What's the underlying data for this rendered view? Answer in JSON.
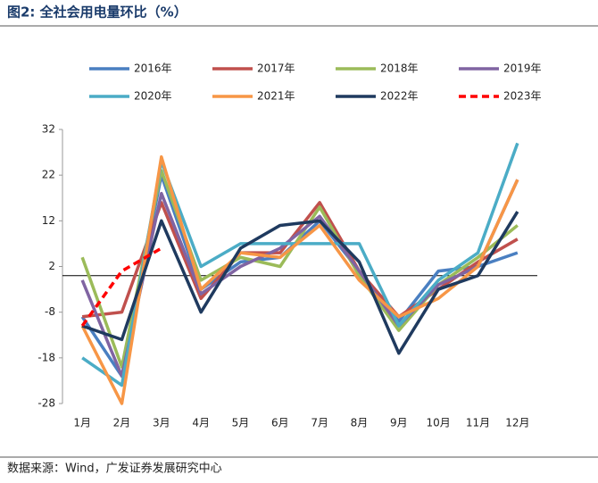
{
  "chart_data": {
    "type": "line",
    "title": "图2: 全社会用电量环比（%）",
    "source": "数据来源：Wind，广发证券发展研究中心",
    "categories": [
      "1月",
      "2月",
      "3月",
      "4月",
      "5月",
      "6月",
      "7月",
      "8月",
      "9月",
      "10月",
      "11月",
      "12月"
    ],
    "ylim": [
      -28,
      32
    ],
    "yticks": [
      -28,
      -18,
      -8,
      2,
      12,
      22,
      32
    ],
    "series": [
      {
        "name": "2016年",
        "color": "#4a7fc1",
        "values": [
          -9,
          -22,
          22,
          -3,
          3,
          4,
          12,
          1,
          -10,
          1,
          2,
          5
        ]
      },
      {
        "name": "2017年",
        "color": "#c0504d",
        "values": [
          -9,
          -8,
          16,
          -5,
          5,
          5,
          16,
          1,
          -9,
          -3,
          3,
          8
        ]
      },
      {
        "name": "2018年",
        "color": "#9bbb59",
        "values": [
          4,
          -20,
          23,
          -1,
          4,
          2,
          15,
          0,
          -12,
          -2,
          4,
          11
        ]
      },
      {
        "name": "2019年",
        "color": "#8064a2",
        "values": [
          -1,
          -22,
          18,
          -4,
          2,
          6,
          13,
          1,
          -11,
          -2,
          2,
          21
        ]
      },
      {
        "name": "2020年",
        "color": "#4bacc6",
        "values": [
          -18,
          -24,
          25,
          2,
          7,
          7,
          7,
          7,
          -11,
          -1,
          5,
          29
        ]
      },
      {
        "name": "2021年",
        "color": "#f79646",
        "values": [
          -11,
          -28,
          26,
          -3,
          5,
          4,
          11,
          -1,
          -9,
          -5,
          2,
          21
        ]
      },
      {
        "name": "2022年",
        "color": "#1f3a5f",
        "values": [
          -11,
          -14,
          12,
          -8,
          6,
          11,
          12,
          3,
          -17,
          -3,
          0,
          14
        ]
      },
      {
        "name": "2023年",
        "color": "#ff0000",
        "dashed": true,
        "values": [
          -11,
          1,
          6,
          null,
          null,
          null,
          null,
          null,
          null,
          null,
          null,
          null
        ]
      }
    ]
  }
}
